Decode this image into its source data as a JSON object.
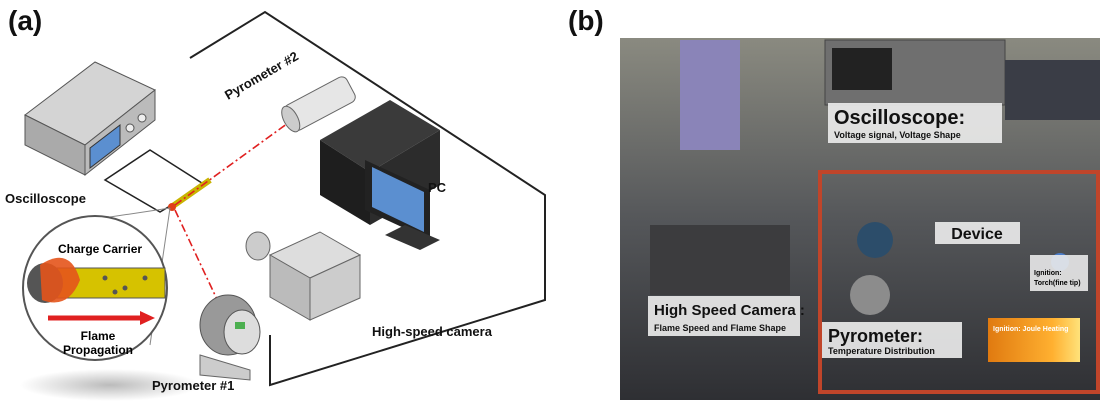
{
  "panel_a": {
    "label": "(a)",
    "pyrometer_2": "Pyrometer #2",
    "oscilloscope": "Oscilloscope",
    "pc": "PC",
    "charge_carrier": "Charge Carrier",
    "flame_propagation": [
      "Flame",
      "Propagation"
    ],
    "high_speed_camera": "High-speed camera",
    "pyrometer_1": "Pyrometer #1"
  },
  "panel_b": {
    "label": "(b)",
    "oscilloscope": {
      "title": "Oscilloscope:",
      "detail": "Voltage signal, Voltage Shape"
    },
    "device": "Device",
    "ignition_torch": [
      "Ignition:",
      "Torch(fine tip)"
    ],
    "high_speed_camera": {
      "title": "High Speed Camera :",
      "detail": "Flame Speed and Flame Shape"
    },
    "pyrometer": {
      "title": "Pyrometer:",
      "detail": "Temperature Distribution"
    },
    "ignition_joule": "Ignition: Joule Heating"
  }
}
